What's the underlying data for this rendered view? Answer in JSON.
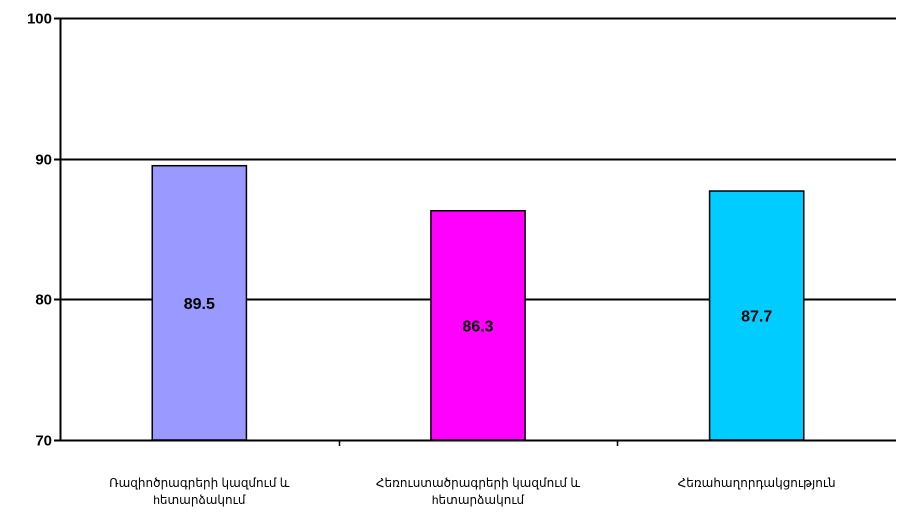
{
  "chart_data": {
    "type": "bar",
    "categories": [
      [
        "Ռազիոծրագրերի կազմում և",
        "hետարձակում"
      ],
      [
        "Հեռուստածրագրերի կազմում և",
        "hետարձակում"
      ],
      [
        "Հեռահաղորդակցություն"
      ]
    ],
    "values": [
      89.5,
      86.3,
      87.7
    ],
    "value_labels": [
      "89.5",
      "86.3",
      "87.7"
    ],
    "colors": [
      "#9999ff",
      "#ff00ff",
      "#00ccff"
    ],
    "ylim": [
      70,
      100
    ],
    "yticks": [
      70,
      80,
      90,
      100
    ],
    "ytick_labels": [
      "70",
      "80",
      "90",
      "100"
    ],
    "grid": true,
    "legend": "none",
    "title": "",
    "xlabel": "",
    "ylabel": ""
  }
}
